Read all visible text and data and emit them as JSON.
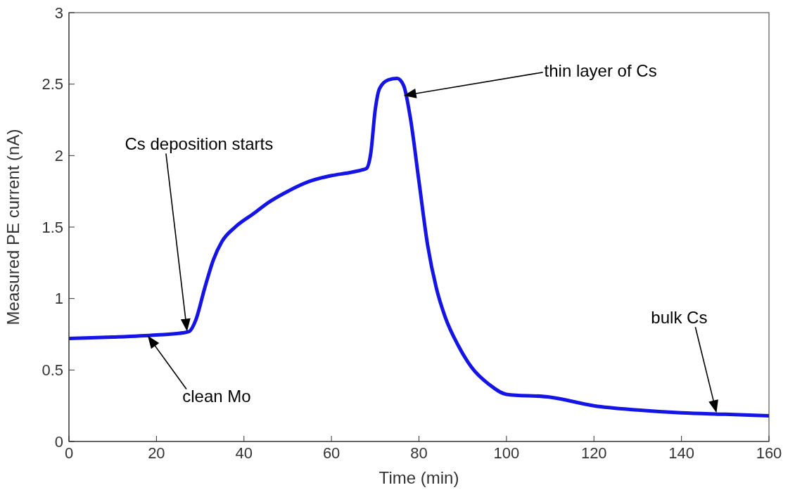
{
  "chart_data": {
    "type": "line",
    "xlabel": "Time (min)",
    "ylabel": "Measured PE current (nA)",
    "x": [
      0,
      10,
      20,
      26,
      27.5,
      29,
      31,
      33,
      35,
      38,
      42,
      46,
      50,
      55,
      60,
      64,
      67,
      68,
      69,
      70,
      71,
      73,
      75,
      76.5,
      78,
      80,
      82,
      84,
      86,
      89,
      92,
      96,
      100,
      110,
      120,
      130,
      140,
      150,
      160
    ],
    "series": [
      {
        "color": "#1414e6",
        "values": [
          0.72,
          0.73,
          0.745,
          0.76,
          0.77,
          0.85,
          1.07,
          1.27,
          1.4,
          1.5,
          1.59,
          1.68,
          1.75,
          1.82,
          1.86,
          1.88,
          1.9,
          1.91,
          2.02,
          2.32,
          2.47,
          2.53,
          2.54,
          2.49,
          2.27,
          1.82,
          1.37,
          1.07,
          0.87,
          0.67,
          0.52,
          0.4,
          0.33,
          0.31,
          0.25,
          0.22,
          0.2,
          0.19,
          0.18
        ]
      }
    ],
    "xlim": [
      0,
      160
    ],
    "xticks": [
      0,
      20,
      40,
      60,
      80,
      100,
      120,
      140,
      160
    ],
    "ylim": [
      0,
      3
    ],
    "yticks": [
      0,
      0.5,
      1,
      1.5,
      2,
      2.5,
      3
    ],
    "grid": false,
    "legend": false,
    "marker": "none",
    "line_style": "solid",
    "annotations": [
      "Cs deposition starts",
      "clean Mo",
      "thin layer of Cs",
      "bulk Cs"
    ]
  }
}
